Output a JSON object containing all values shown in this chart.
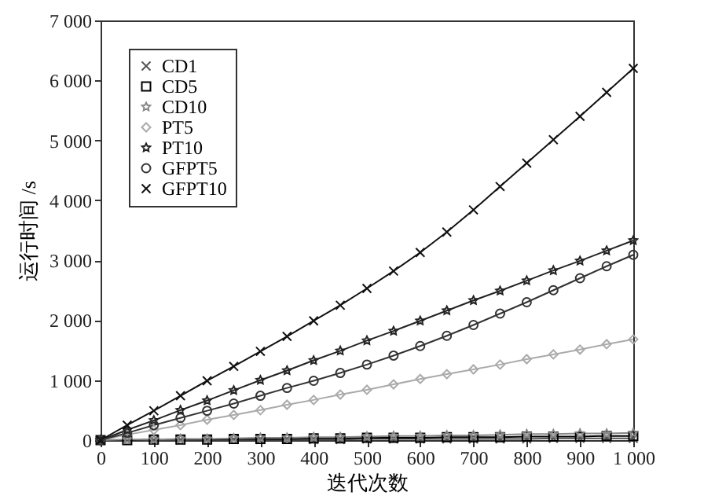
{
  "chart_data": {
    "type": "line",
    "xlabel": "迭代次数",
    "ylabel": "运行时间 /s",
    "x": [
      0,
      50,
      100,
      150,
      200,
      250,
      300,
      350,
      400,
      450,
      500,
      550,
      600,
      650,
      700,
      750,
      800,
      850,
      900,
      950,
      1000
    ],
    "xlim": [
      0,
      1000
    ],
    "xticks": [
      0,
      100,
      200,
      300,
      400,
      500,
      600,
      700,
      800,
      900,
      {
        "value": 1000,
        "label": "1 000"
      }
    ],
    "ylim": [
      0,
      7000
    ],
    "yticks": [
      0,
      {
        "value": 1000,
        "label": "1 000"
      },
      {
        "value": 2000,
        "label": "2 000"
      },
      {
        "value": 3000,
        "label": "3 000"
      },
      {
        "value": 4000,
        "label": "4 000"
      },
      {
        "value": 5000,
        "label": "5 000"
      },
      {
        "value": 6000,
        "label": "6 000"
      },
      {
        "value": 7000,
        "label": "7 000"
      }
    ],
    "grid": false,
    "legend": "top left",
    "line_style": "solid",
    "series": [
      {
        "name": "CD1",
        "color": "#555555",
        "marker": "cross",
        "values": [
          0,
          0,
          0,
          0,
          10,
          10,
          10,
          10,
          10,
          10,
          20,
          20,
          20,
          20,
          20,
          20,
          20,
          30,
          30,
          30,
          30
        ]
      },
      {
        "name": "CD5",
        "color": "#000000",
        "marker": "square",
        "values": [
          0,
          0,
          10,
          10,
          10,
          20,
          20,
          20,
          30,
          30,
          40,
          40,
          40,
          50,
          50,
          50,
          60,
          60,
          60,
          70,
          70
        ]
      },
      {
        "name": "CD10",
        "color": "#888888",
        "marker": "star",
        "values": [
          0,
          10,
          10,
          20,
          20,
          30,
          40,
          40,
          50,
          50,
          60,
          70,
          70,
          80,
          80,
          90,
          100,
          100,
          110,
          110,
          120
        ]
      },
      {
        "name": "PT5",
        "color": "#aaaaaa",
        "marker": "diamond",
        "values": [
          0,
          90,
          170,
          250,
          340,
          420,
          500,
          590,
          670,
          760,
          840,
          930,
          1020,
          1100,
          1180,
          1260,
          1350,
          1430,
          1510,
          1600,
          1680
        ]
      },
      {
        "name": "PT10",
        "color": "#222222",
        "marker": "star",
        "values": [
          0,
          170,
          330,
          500,
          660,
          830,
          1000,
          1160,
          1330,
          1490,
          1660,
          1820,
          1990,
          2160,
          2330,
          2490,
          2660,
          2830,
          2990,
          3160,
          3330
        ]
      },
      {
        "name": "GFPT5",
        "color": "#333333",
        "marker": "circle",
        "values": [
          0,
          120,
          250,
          370,
          490,
          610,
          740,
          870,
          990,
          1120,
          1260,
          1410,
          1570,
          1740,
          1920,
          2110,
          2300,
          2500,
          2700,
          2900,
          3090
        ]
      },
      {
        "name": "GFPT10",
        "color": "#111111",
        "marker": "cross",
        "values": [
          0,
          250,
          490,
          740,
          990,
          1230,
          1480,
          1730,
          1990,
          2250,
          2530,
          2820,
          3130,
          3470,
          3840,
          4230,
          4620,
          5010,
          5400,
          5800,
          6200
        ]
      }
    ]
  }
}
